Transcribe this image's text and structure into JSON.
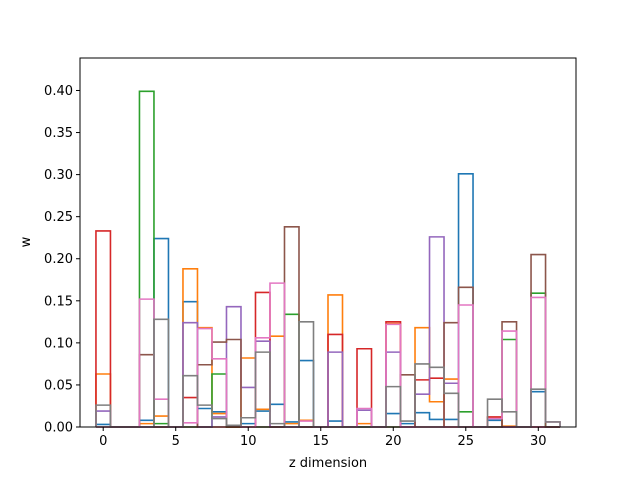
{
  "chart_data": {
    "type": "step",
    "title": "",
    "xlabel": "z dimension",
    "ylabel": "w",
    "xlim": [
      -1.6,
      32.6
    ],
    "ylim": [
      0.0,
      0.4386
    ],
    "grid": false,
    "legend": "none",
    "x_ticks": [
      0,
      5,
      10,
      15,
      20,
      25,
      30
    ],
    "x_tick_labels": [
      "0",
      "5",
      "10",
      "15",
      "20",
      "25",
      "30"
    ],
    "y_ticks": [
      0.0,
      0.05,
      0.1,
      0.15,
      0.2,
      0.25,
      0.3,
      0.35,
      0.4
    ],
    "y_tick_labels": [
      "0.00",
      "0.05",
      "0.10",
      "0.15",
      "0.20",
      "0.25",
      "0.30",
      "0.35",
      "0.40"
    ],
    "x": [
      0,
      1,
      2,
      3,
      4,
      5,
      6,
      7,
      8,
      9,
      10,
      11,
      12,
      13,
      14,
      15,
      16,
      17,
      18,
      19,
      20,
      21,
      22,
      23,
      24,
      25,
      26,
      27,
      28,
      29,
      30,
      31
    ],
    "series": [
      {
        "color": "#1f77b4",
        "values": [
          0.003,
          0.0,
          0.0,
          0.008,
          0.224,
          0.0,
          0.149,
          0.022,
          0.018,
          0.0,
          0.004,
          0.019,
          0.027,
          0.006,
          0.079,
          0.0,
          0.007,
          0.0,
          0.0,
          0.0,
          0.016,
          0.004,
          0.017,
          0.009,
          0.009,
          0.301,
          0.0,
          0.008,
          0.0,
          0.0,
          0.042,
          0.0
        ]
      },
      {
        "color": "#ff7f0e",
        "values": [
          0.063,
          0.0,
          0.0,
          0.004,
          0.013,
          0.0,
          0.188,
          0.118,
          0.016,
          0.0,
          0.082,
          0.021,
          0.108,
          0.004,
          0.008,
          0.0,
          0.157,
          0.0,
          0.004,
          0.0,
          0.123,
          0.0,
          0.118,
          0.03,
          0.057,
          0.0,
          0.0,
          0.011,
          0.001,
          0.0,
          0.0,
          0.0
        ]
      },
      {
        "color": "#2ca02c",
        "values": [
          0.0,
          0.0,
          0.0,
          0.399,
          0.004,
          0.0,
          0.0,
          0.0,
          0.063,
          0.0,
          0.0,
          0.0,
          0.0,
          0.134,
          0.0,
          0.0,
          0.0,
          0.0,
          0.0,
          0.0,
          0.0,
          0.0,
          0.0,
          0.0,
          0.0,
          0.018,
          0.0,
          0.0,
          0.104,
          0.0,
          0.159,
          0.0
        ]
      },
      {
        "color": "#d62728",
        "values": [
          0.233,
          0.0,
          0.0,
          0.0,
          0.0,
          0.0,
          0.035,
          0.0,
          0.0,
          0.0,
          0.0,
          0.16,
          0.0,
          0.0,
          0.0,
          0.0,
          0.11,
          0.0,
          0.093,
          0.0,
          0.125,
          0.0,
          0.056,
          0.058,
          0.0,
          0.0,
          0.0,
          0.012,
          0.0,
          0.0,
          0.0,
          0.0
        ]
      },
      {
        "color": "#9467bd",
        "values": [
          0.019,
          0.0,
          0.0,
          0.0,
          0.0,
          0.0,
          0.124,
          0.0,
          0.012,
          0.143,
          0.047,
          0.102,
          0.0,
          0.0,
          0.0,
          0.0,
          0.089,
          0.0,
          0.02,
          0.0,
          0.089,
          0.0,
          0.039,
          0.226,
          0.052,
          0.0,
          0.0,
          0.0,
          0.0,
          0.0,
          0.0,
          0.0
        ]
      },
      {
        "color": "#8c564b",
        "values": [
          0.0,
          0.0,
          0.0,
          0.086,
          0.0,
          0.0,
          0.0,
          0.074,
          0.101,
          0.104,
          0.0,
          0.0,
          0.0,
          0.238,
          0.0,
          0.0,
          0.0,
          0.0,
          0.0,
          0.0,
          0.0,
          0.062,
          0.0,
          0.0,
          0.124,
          0.166,
          0.0,
          0.0,
          0.125,
          0.0,
          0.205,
          0.0
        ]
      },
      {
        "color": "#e377c2",
        "values": [
          0.0,
          0.0,
          0.0,
          0.152,
          0.033,
          0.0,
          0.005,
          0.117,
          0.081,
          0.002,
          0.0,
          0.106,
          0.171,
          0.0,
          0.007,
          0.0,
          0.0,
          0.0,
          0.022,
          0.0,
          0.122,
          0.0,
          0.0,
          0.0,
          0.0,
          0.145,
          0.0,
          0.01,
          0.114,
          0.0,
          0.154,
          0.006
        ]
      },
      {
        "color": "#7f7f7f",
        "values": [
          0.026,
          0.0,
          0.0,
          0.0,
          0.128,
          0.0,
          0.061,
          0.026,
          0.01,
          0.002,
          0.011,
          0.089,
          0.004,
          0.0,
          0.125,
          0.0,
          0.0,
          0.0,
          0.0,
          0.0,
          0.048,
          0.007,
          0.075,
          0.071,
          0.04,
          0.0,
          0.0,
          0.033,
          0.018,
          0.0,
          0.045,
          0.006
        ]
      }
    ]
  }
}
